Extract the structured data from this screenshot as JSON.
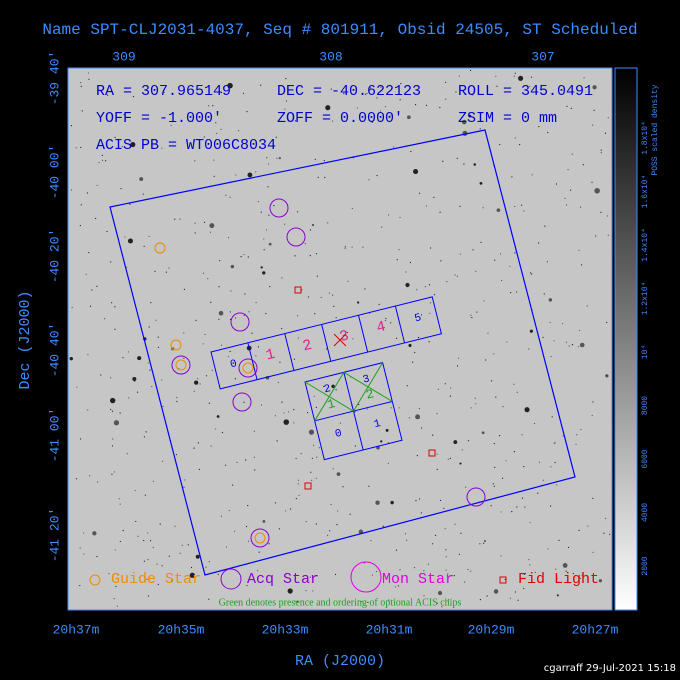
{
  "title": "Name SPT-CLJ2031-4037, Seq # 801911, Obsid 24505, ST Scheduled",
  "top_axis": {
    "ticks": [
      "309",
      "308",
      "307"
    ]
  },
  "left_axis": {
    "label": "Dec (J2000)",
    "ticks": [
      "-39 40'",
      "-40 00'",
      "-40 20'",
      "-40 40'",
      "-41 00'",
      "-41 20'"
    ]
  },
  "bottom_axis": {
    "label": "RA (J2000)",
    "ticks": [
      "20h37m",
      "20h35m",
      "20h33m",
      "20h31m",
      "20h29m",
      "20h27m"
    ]
  },
  "info": {
    "ra": "RA = 307.965149",
    "dec": "DEC = -40.622123",
    "roll": "ROLL = 345.0491",
    "yoff": "YOFF =  -1.000'",
    "zoff": "ZOFF =  0.0000'",
    "zsim": "ZSIM = 0 mm",
    "acis_pb": "ACIS PB = WT006C8034"
  },
  "colorbar": {
    "label": "POSS scaled density",
    "ticks": [
      "2000",
      "4000",
      "6000",
      "8000",
      "10⁴",
      "1.2x10⁴",
      "1.4x10⁴",
      "1.6x10⁴",
      "1.8x10⁴"
    ]
  },
  "chips": {
    "s": [
      "0",
      "1",
      "2",
      "3",
      "4",
      "5"
    ],
    "i": [
      "2",
      "3",
      "0",
      "1"
    ],
    "optional": [
      "1",
      "2"
    ]
  },
  "legend": [
    "Guide Star",
    "Acq Star",
    "Mon Star",
    "Fid Light"
  ],
  "note": "Green denotes presence and ordering of optional ACIS chips",
  "footer": "cgarraff 29-Jul-2021 15:18"
}
